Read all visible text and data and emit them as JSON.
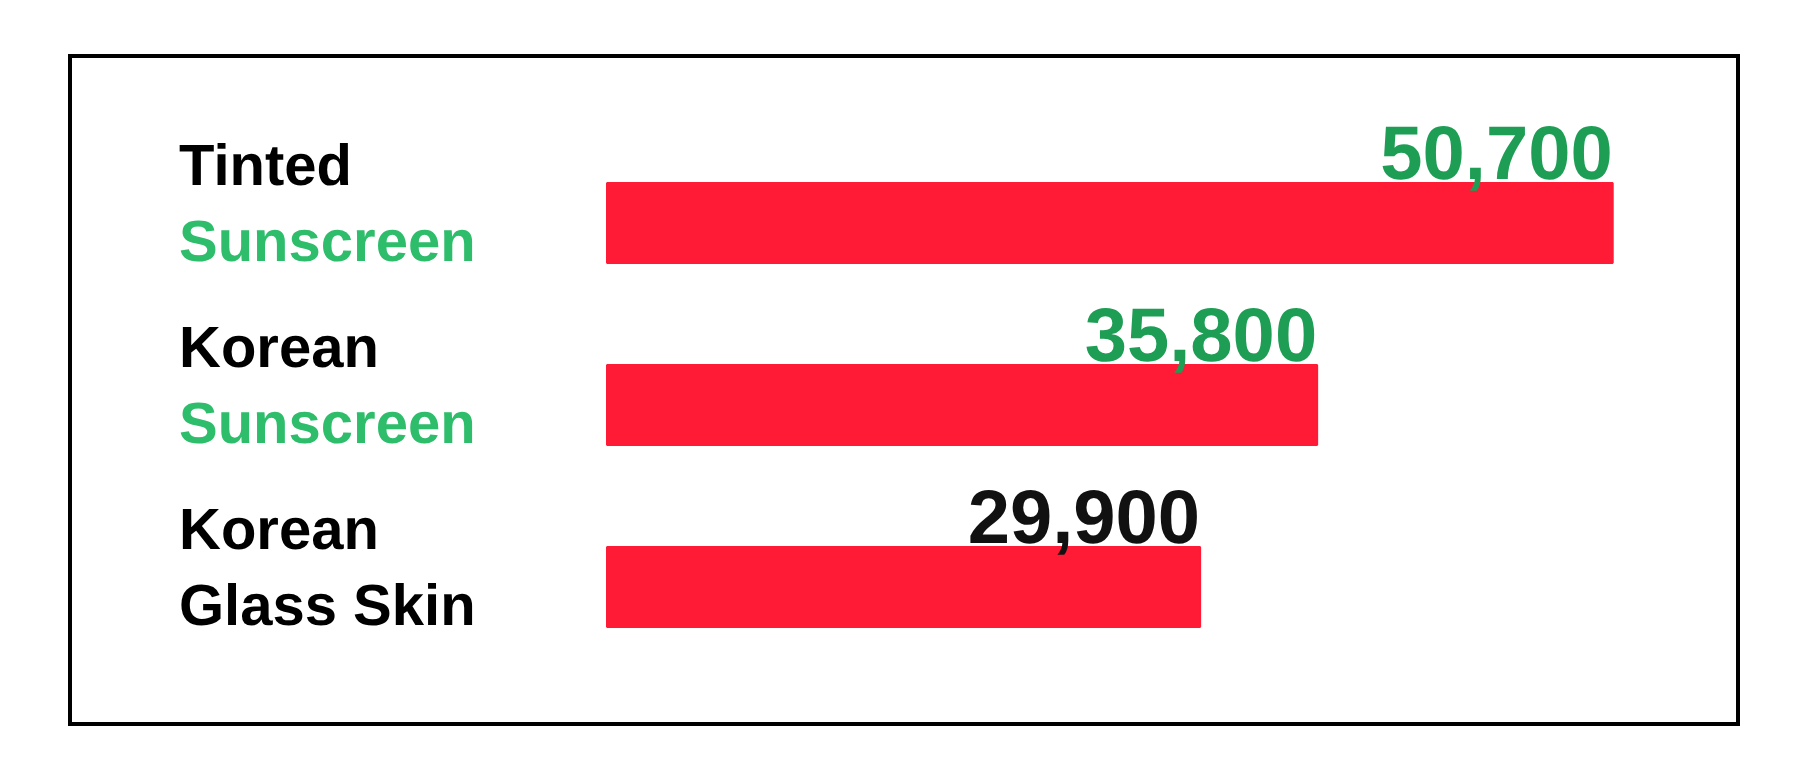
{
  "chart_data": {
    "type": "bar",
    "orientation": "horizontal",
    "categories": [
      "Tinted\nSunscreen",
      "Korean\nSunscreen",
      "Korean\nGlass Skin"
    ],
    "values": [
      50700,
      35800,
      29900
    ],
    "color": "#ff1a35",
    "value_labels": [
      "50,700",
      "35,800",
      "29,900"
    ]
  }
}
